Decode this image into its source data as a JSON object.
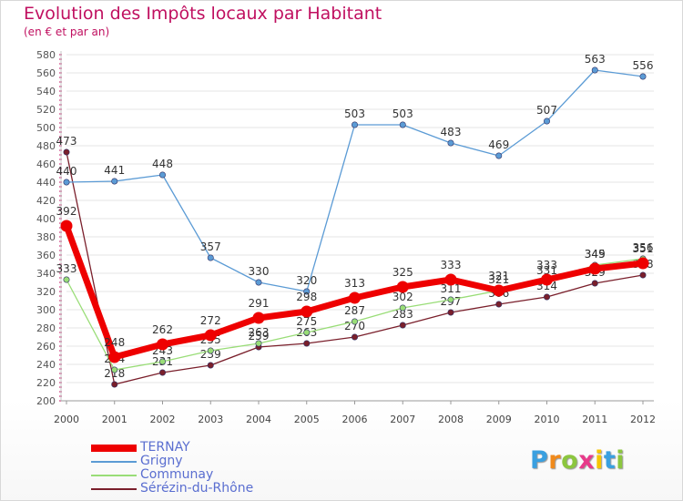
{
  "chart_data": {
    "type": "line",
    "title": "Evolution des Impôts locaux par Habitant",
    "subtitle": "(en € et par an)",
    "xlabel": "",
    "ylabel": "",
    "ylim": [
      200,
      580
    ],
    "ytick_step": 20,
    "grid": true,
    "categories": [
      "2000",
      "2001",
      "2002",
      "2003",
      "2004",
      "2005",
      "2006",
      "2007",
      "2008",
      "2009",
      "2010",
      "2011",
      "2012"
    ],
    "series": [
      {
        "name": "Sérézin-du-Rhône",
        "color": "#7a1f2b",
        "values": [
          473,
          218,
          231,
          239,
          259,
          263,
          270,
          283,
          297,
          306,
          314,
          329,
          338
        ]
      },
      {
        "name": "Communay",
        "color": "#99dd77",
        "values": [
          333,
          234,
          243,
          255,
          263,
          275,
          287,
          302,
          311,
          321,
          331,
          349,
          356
        ]
      },
      {
        "name": "Grigny",
        "color": "#5b9bd5",
        "values": [
          440,
          441,
          448,
          357,
          330,
          320,
          503,
          503,
          483,
          469,
          507,
          563,
          556
        ]
      },
      {
        "name": "TERNAY",
        "color": "#ee0000",
        "values": [
          392,
          248,
          262,
          272,
          291,
          298,
          313,
          325,
          333,
          321,
          333,
          345,
          351
        ]
      }
    ],
    "legend_position": "bottom-left",
    "legend": [
      "TERNAY",
      "Grigny",
      "Communay",
      "Sérézin-du-Rhône"
    ]
  },
  "brand": {
    "logo_text": "Proxiti"
  },
  "colors": {
    "title": "#c01060",
    "legend_text": "#5a6ed0",
    "axis": "#c01060",
    "grid": "#e4e4e4"
  }
}
